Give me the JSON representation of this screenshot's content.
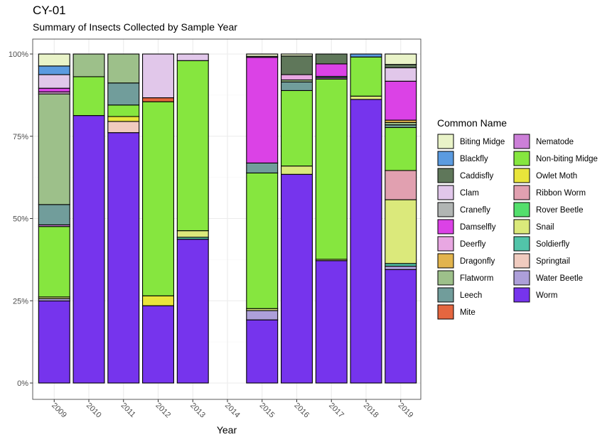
{
  "chart_data": {
    "type": "bar",
    "stacked": "percent",
    "title": "CY-01",
    "subtitle": "Summary of Insects Collected by Sample Year",
    "xlabel": "Year",
    "ylabel": "",
    "categories": [
      "2009",
      "2010",
      "2011",
      "2012",
      "2013",
      "2014",
      "2015",
      "2016",
      "2017",
      "2018",
      "2019"
    ],
    "y_ticks": [
      "0%",
      "25%",
      "50%",
      "75%",
      "100%"
    ],
    "ylim": [
      0,
      100
    ],
    "legend_title": "Common Name",
    "legend_position": "right",
    "series": [
      {
        "name": "Biting Midge",
        "color": "#e9f3c8",
        "values": [
          3.6,
          0,
          0,
          0,
          0,
          0,
          0.7,
          0.6,
          0,
          0,
          3.1
        ]
      },
      {
        "name": "Blackfly",
        "color": "#5b9be0",
        "values": [
          2.6,
          0,
          0,
          0,
          0,
          0,
          0,
          0,
          0,
          0.9,
          0
        ]
      },
      {
        "name": "Caddisfly",
        "color": "#5f775a",
        "values": [
          0,
          0,
          0,
          0,
          0,
          0,
          0,
          5.6,
          3.0,
          0,
          1.0
        ]
      },
      {
        "name": "Clam",
        "color": "#e1c7ea",
        "values": [
          4.1,
          0,
          0,
          13.3,
          2.0,
          0,
          0.3,
          0,
          0,
          0,
          4.0
        ]
      },
      {
        "name": "Cranefly",
        "color": "#b1b5b3",
        "values": [
          0,
          0,
          0,
          0,
          0,
          0,
          0,
          0,
          0,
          0,
          0
        ]
      },
      {
        "name": "Damselfly",
        "color": "#db42e6",
        "values": [
          1.1,
          0,
          0,
          0,
          0,
          0,
          31.8,
          0,
          3.8,
          0,
          11.6
        ]
      },
      {
        "name": "Deerfly",
        "color": "#e8a7e2",
        "values": [
          0.6,
          0,
          0,
          0,
          0,
          0,
          0,
          1.6,
          0,
          0,
          0
        ]
      },
      {
        "name": "Dragonfly",
        "color": "#e2b44d",
        "values": [
          0,
          0,
          0,
          0,
          0,
          0,
          0,
          0,
          0,
          0,
          0.7
        ]
      },
      {
        "name": "Flatworm",
        "color": "#9dc08a",
        "values": [
          33.3,
          6.9,
          8.8,
          0,
          0,
          0,
          0,
          0.6,
          0,
          0,
          0.7
        ]
      },
      {
        "name": "Leech",
        "color": "#719d9b",
        "values": [
          6.1,
          0,
          6.7,
          0,
          0,
          0,
          3.0,
          2.6,
          0.4,
          0,
          0.8
        ]
      },
      {
        "name": "Mite",
        "color": "#e4663f",
        "values": [
          0,
          0,
          0,
          1.2,
          0,
          0,
          0,
          0,
          0,
          0,
          0
        ]
      },
      {
        "name": "Nematode",
        "color": "#cc7fd8",
        "values": [
          0.5,
          0,
          0,
          0,
          0,
          0,
          0,
          0,
          0.4,
          0,
          0
        ]
      },
      {
        "name": "Non-biting Midge",
        "color": "#86e63f",
        "values": [
          21.2,
          11.8,
          3.5,
          59.0,
          51.7,
          0,
          40.8,
          22.7,
          54.8,
          11.9,
          12.8
        ]
      },
      {
        "name": "Owlet Moth",
        "color": "#e9e53b",
        "values": [
          0,
          0,
          1.5,
          3.0,
          0,
          0,
          0,
          0,
          0,
          0,
          0
        ]
      },
      {
        "name": "Ribbon Worm",
        "color": "#e1a0b0",
        "values": [
          0,
          0,
          0,
          0,
          0,
          0,
          0,
          0,
          0,
          0,
          8.7
        ]
      },
      {
        "name": "Rover Beetle",
        "color": "#53df6c",
        "values": [
          0,
          0,
          0,
          0,
          0,
          0,
          0,
          0,
          0,
          0,
          0
        ]
      },
      {
        "name": "Snail",
        "color": "#dbe97b",
        "values": [
          0.5,
          0,
          0,
          0,
          2.0,
          0,
          0.6,
          2.5,
          0.4,
          1.0,
          19.0
        ]
      },
      {
        "name": "Soldierfly",
        "color": "#52c4a9",
        "values": [
          0,
          0,
          0,
          0,
          0.6,
          0,
          0,
          0,
          0,
          0,
          0.8
        ]
      },
      {
        "name": "Springtail",
        "color": "#f0cbbf",
        "values": [
          0,
          0,
          3.4,
          0,
          0,
          0,
          0,
          0,
          0,
          0,
          0
        ]
      },
      {
        "name": "Water Beetle",
        "color": "#ad9fd9",
        "values": [
          0.7,
          0,
          0,
          0,
          0,
          0,
          2.8,
          0,
          0,
          0,
          1.0
        ]
      },
      {
        "name": "Worm",
        "color": "#7634ed",
        "values": [
          24.7,
          81.3,
          76.1,
          23.5,
          43.7,
          0,
          19.0,
          62.8,
          37.2,
          86.2,
          33.8
        ]
      }
    ]
  }
}
